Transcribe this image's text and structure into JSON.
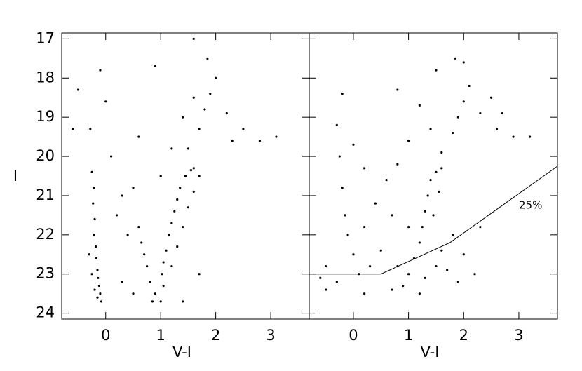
{
  "chart_data": [
    {
      "type": "scatter",
      "x_label": "V-I",
      "y_label": "I",
      "color": "#000000",
      "xlim": [
        -0.8,
        3.7
      ],
      "ylim": [
        24.15,
        16.85
      ],
      "xticks": [
        0,
        1,
        2,
        3
      ],
      "yticks": [
        17,
        18,
        19,
        20,
        21,
        22,
        23,
        24
      ],
      "ytick_labels": true,
      "x": [
        -0.25,
        -0.22,
        -0.23,
        -0.2,
        -0.21,
        -0.18,
        -0.17,
        -0.15,
        -0.14,
        -0.12,
        -0.1,
        -0.08,
        -0.15,
        -0.2,
        -0.25,
        -0.3,
        -0.28,
        1.0,
        1.05,
        1.02,
        1.05,
        1.1,
        1.15,
        1.2,
        1.25,
        1.3,
        1.35,
        1.45,
        1.55,
        1.6,
        0.85,
        0.9,
        0.8,
        0.75,
        0.7,
        0.65,
        0.6,
        1.2,
        1.3,
        1.4,
        1.5,
        1.6,
        1.7,
        1.5,
        1.7,
        1.8,
        1.9,
        2.0,
        1.85,
        2.2,
        2.5,
        2.8,
        3.1,
        2.3,
        1.4,
        1.2,
        1.0,
        1.6,
        0.3,
        0.5,
        0.4,
        0.2,
        0.1,
        -0.1,
        0.0,
        0.6,
        0.3,
        0.5,
        1.4,
        1.7,
        -0.5,
        -0.6,
        0.9,
        1.6
      ],
      "y": [
        20.4,
        20.8,
        21.2,
        21.6,
        22.0,
        22.3,
        22.6,
        22.9,
        23.1,
        23.3,
        23.5,
        23.7,
        23.6,
        23.4,
        23.0,
        22.5,
        19.3,
        23.7,
        23.3,
        23.0,
        22.7,
        22.4,
        22.0,
        21.7,
        21.4,
        21.1,
        20.8,
        20.5,
        20.35,
        20.3,
        23.7,
        23.5,
        23.2,
        22.8,
        22.5,
        22.2,
        21.8,
        22.8,
        22.3,
        21.8,
        21.3,
        20.9,
        20.5,
        19.8,
        19.3,
        18.8,
        18.4,
        18.0,
        17.5,
        18.9,
        19.3,
        19.6,
        19.5,
        19.6,
        19.0,
        19.8,
        20.5,
        18.5,
        21.0,
        20.8,
        22.0,
        21.5,
        20.0,
        17.8,
        18.6,
        19.5,
        23.2,
        23.5,
        23.7,
        23.0,
        18.3,
        19.3,
        17.7,
        17.0
      ]
    },
    {
      "type": "scatter",
      "x_label": "V-I",
      "color": "#000000",
      "xlim": [
        -0.8,
        3.7
      ],
      "ylim": [
        24.15,
        16.85
      ],
      "xticks": [
        0,
        1,
        2,
        3
      ],
      "yticks": [
        17,
        18,
        19,
        20,
        21,
        22,
        23,
        24
      ],
      "ytick_labels": false,
      "annotation": "25%",
      "x": [
        -0.3,
        -0.25,
        -0.2,
        -0.15,
        -0.1,
        0,
        0.1,
        -0.3,
        -0.5,
        0.2,
        0.3,
        0.2,
        0.4,
        0.6,
        0.8,
        0.7,
        0.5,
        0.9,
        1.0,
        1.1,
        1.2,
        1.25,
        1.3,
        1.35,
        1.4,
        1.5,
        1.6,
        1.3,
        1.5,
        1.6,
        1.7,
        1.9,
        1.8,
        1.0,
        0.8,
        0.7,
        1.2,
        1.45,
        1.55,
        1.6,
        1.8,
        1.9,
        2.0,
        2.1,
        1.85,
        2.0,
        2.3,
        2.6,
        2.9,
        3.2,
        2.5,
        1.4,
        1.2,
        1.0,
        0.8,
        1.5,
        2.7,
        -0.5,
        -0.6,
        0.0,
        0.2,
        2.2,
        2.0,
        2.3,
        -0.2
      ],
      "y": [
        19.2,
        20,
        20.8,
        21.5,
        22,
        22.5,
        23,
        23.2,
        23.4,
        23.5,
        22.8,
        21.8,
        21.2,
        20.6,
        20.2,
        21.5,
        22.4,
        23.3,
        23.0,
        22.6,
        22.2,
        21.8,
        21.4,
        21.0,
        20.6,
        20.4,
        20.3,
        23.1,
        22.8,
        22.4,
        22.9,
        23.2,
        22.0,
        21.8,
        22.8,
        23.4,
        23.5,
        21.5,
        20.9,
        19.9,
        19.4,
        19.0,
        18.6,
        18.2,
        17.5,
        17.6,
        18.9,
        19.3,
        19.5,
        19.5,
        18.5,
        19.3,
        18.7,
        19.6,
        18.3,
        17.8,
        18.9,
        22.8,
        23.1,
        19.7,
        20.3,
        23.0,
        22.5,
        21.8,
        18.4
      ],
      "line": {
        "x": [
          -0.8,
          0.5,
          1.75,
          3.7
        ],
        "y": [
          23.0,
          23.0,
          22.2,
          20.25
        ]
      }
    }
  ]
}
